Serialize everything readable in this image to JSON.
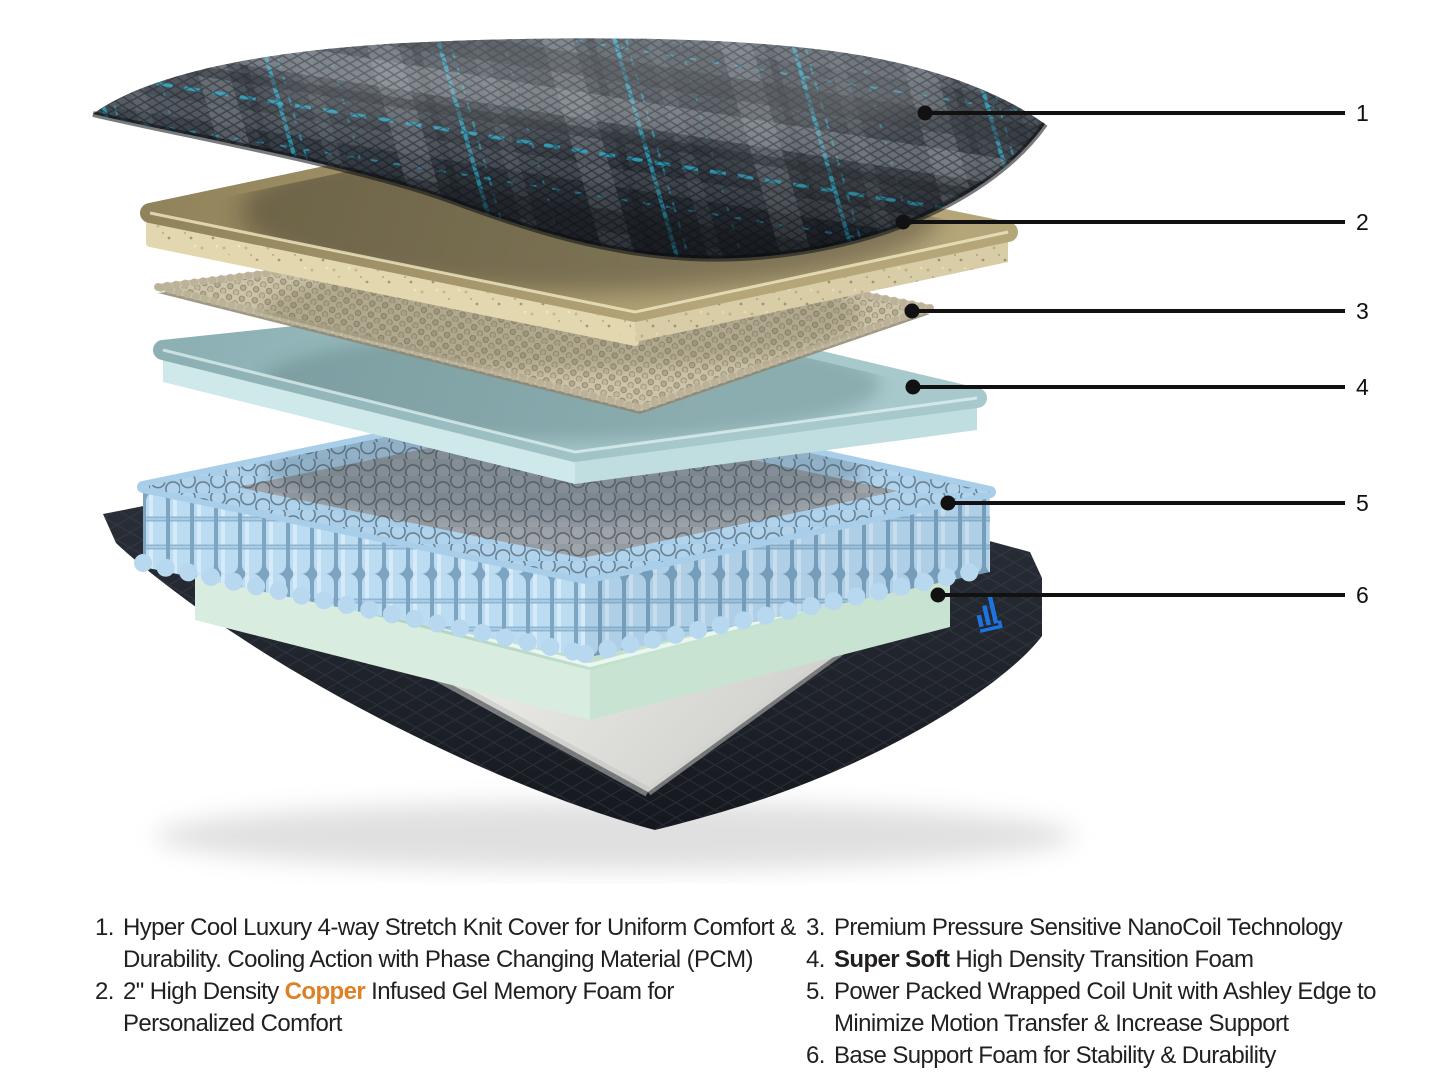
{
  "figure": {
    "type": "exploded-mattress-diagram",
    "callouts": [
      "1",
      "2",
      "3",
      "4",
      "5",
      "6"
    ],
    "layer_names": [
      "knit-cover",
      "gel-memory-foam",
      "nanocoil-sheet",
      "transition-foam",
      "wrapped-coil-unit",
      "base-support-foam"
    ]
  },
  "legend": {
    "left": [
      {
        "num": "1.",
        "lines": [
          [
            {
              "t": "Hyper Cool Luxury 4-way Stretch Knit Cover for Uniform Comfort &"
            }
          ],
          [
            {
              "t": "Durability. Cooling Action with Phase Changing Material (PCM)"
            }
          ]
        ]
      },
      {
        "num": "2.",
        "lines": [
          [
            {
              "t": "2\" High Density "
            },
            {
              "t": "Copper",
              "cls": "copper"
            },
            {
              "t": " Infused Gel Memory Foam for"
            }
          ],
          [
            {
              "t": "Personalized Comfort"
            }
          ]
        ]
      }
    ],
    "right": [
      {
        "num": "3.",
        "lines": [
          [
            {
              "t": "Premium Pressure Sensitive NanoCoil Technology"
            }
          ]
        ]
      },
      {
        "num": "4.",
        "lines": [
          [
            {
              "t": "Super Soft",
              "cls": "bold"
            },
            {
              "t": " High Density Transition Foam"
            }
          ]
        ]
      },
      {
        "num": "5.",
        "lines": [
          [
            {
              "t": "Power Packed Wrapped Coil Unit with Ashley Edge to"
            }
          ],
          [
            {
              "t": "Minimize Motion Transfer & Increase Support"
            }
          ]
        ]
      },
      {
        "num": "6.",
        "lines": [
          [
            {
              "t": "Base Support Foam for Stability & Durability"
            }
          ]
        ]
      }
    ]
  },
  "colors": {
    "text": "#231F20",
    "copper_accent": "#DD8127",
    "plaid_cyan": "#27B6D8",
    "logo_blue": "#1D79E8",
    "coil_blue": "#BCDCF2",
    "foam_tan": "#AB9C72",
    "foam_teal": "#9BBFC2",
    "foam_green": "#BFE0CD",
    "base_dark": "#23262E",
    "callout_line": "#111111"
  }
}
